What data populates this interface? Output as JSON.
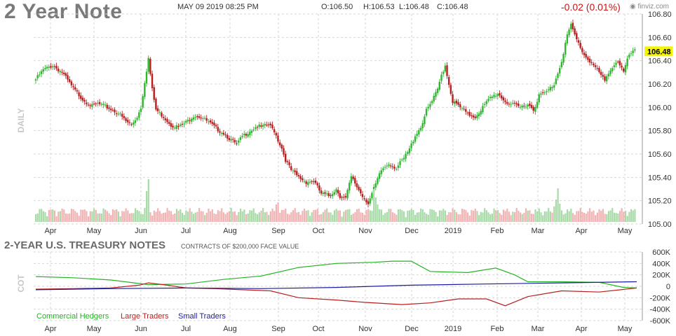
{
  "header": {
    "title": "2 Year Note",
    "date": "MAY 09 2019 08:25 PM",
    "open": "O:106.50",
    "high": "H:106.53",
    "low": "L:106.48",
    "close": "C:106.48",
    "change": "-0.02 (0.01%)",
    "brand": "finviz.com"
  },
  "colors": {
    "up": "#2fb62f",
    "down": "#b81e1e",
    "volume_up": "#a9dba9",
    "volume_down": "#f0b4b4",
    "grid": "#d6d6d6",
    "price_tag_bg": "#f5f500",
    "commercial": "#22b422",
    "large": "#b81e1e",
    "small": "#1c1ca0"
  },
  "cot": {
    "title": "2-YEAR U.S. TREASURY NOTES",
    "subtitle": "CONTRACTS OF $200,000 FACE VALUE",
    "side_label": "COT",
    "legend": {
      "commercial": "Commercial Hedgers",
      "large": "Large Traders",
      "small": "Small Traders"
    }
  },
  "chart_data": [
    {
      "type": "candlestick",
      "side_label": "DAILY",
      "last_price": "106.48",
      "y_ticks": [
        "106.80",
        "106.60",
        "106.40",
        "106.20",
        "106.00",
        "105.80",
        "105.60",
        "105.40",
        "105.20",
        "105.00"
      ],
      "ylim": [
        105.0,
        106.8
      ],
      "x_ticks": [
        "Apr",
        "May",
        "Jun",
        "Jul",
        "Aug",
        "Sep",
        "Oct",
        "Nov",
        "Dec",
        "2019",
        "Feb",
        "Mar",
        "Apr",
        "May"
      ],
      "grid": true,
      "anchors": [
        [
          0,
          106.24
        ],
        [
          4,
          106.32
        ],
        [
          9,
          106.36
        ],
        [
          14,
          106.3
        ],
        [
          20,
          106.16
        ],
        [
          25,
          106.07
        ],
        [
          30,
          106.01
        ],
        [
          33,
          106.03
        ],
        [
          38,
          106.0
        ],
        [
          44,
          105.95
        ],
        [
          48,
          105.88
        ],
        [
          51,
          105.85
        ],
        [
          54,
          105.92
        ],
        [
          56,
          106.0
        ],
        [
          58,
          106.22
        ],
        [
          60,
          106.42
        ],
        [
          62,
          106.15
        ],
        [
          64,
          105.98
        ],
        [
          68,
          105.92
        ],
        [
          72,
          105.85
        ],
        [
          76,
          105.83
        ],
        [
          80,
          105.87
        ],
        [
          84,
          105.93
        ],
        [
          88,
          105.92
        ],
        [
          92,
          105.87
        ],
        [
          96,
          105.82
        ],
        [
          100,
          105.78
        ],
        [
          104,
          105.72
        ],
        [
          107,
          105.68
        ],
        [
          110,
          105.75
        ],
        [
          114,
          105.8
        ],
        [
          118,
          105.84
        ],
        [
          120,
          105.83
        ],
        [
          124,
          105.85
        ],
        [
          127,
          105.8
        ],
        [
          129,
          105.72
        ],
        [
          131,
          105.65
        ],
        [
          133,
          105.55
        ],
        [
          136,
          105.46
        ],
        [
          140,
          105.4
        ],
        [
          144,
          105.36
        ],
        [
          148,
          105.37
        ],
        [
          152,
          105.26
        ],
        [
          156,
          105.24
        ],
        [
          160,
          105.3
        ],
        [
          162,
          105.24
        ],
        [
          165,
          105.22
        ],
        [
          168,
          105.4
        ],
        [
          171,
          105.32
        ],
        [
          174,
          105.24
        ],
        [
          177,
          105.18
        ],
        [
          180,
          105.3
        ],
        [
          184,
          105.46
        ],
        [
          188,
          105.52
        ],
        [
          192,
          105.48
        ],
        [
          196,
          105.56
        ],
        [
          199,
          105.64
        ],
        [
          202,
          105.76
        ],
        [
          205,
          105.83
        ],
        [
          208,
          105.97
        ],
        [
          211,
          106.05
        ],
        [
          214,
          106.15
        ],
        [
          216,
          106.28
        ],
        [
          218,
          106.36
        ],
        [
          220,
          106.2
        ],
        [
          222,
          106.05
        ],
        [
          226,
          106.0
        ],
        [
          230,
          105.94
        ],
        [
          234,
          105.92
        ],
        [
          238,
          106.0
        ],
        [
          242,
          106.08
        ],
        [
          246,
          106.12
        ],
        [
          250,
          106.05
        ],
        [
          254,
          106.02
        ],
        [
          258,
          106.0
        ],
        [
          262,
          106.03
        ],
        [
          265,
          105.98
        ],
        [
          268,
          106.1
        ],
        [
          272,
          106.13
        ],
        [
          276,
          106.2
        ],
        [
          280,
          106.4
        ],
        [
          283,
          106.62
        ],
        [
          285,
          106.7
        ],
        [
          288,
          106.58
        ],
        [
          292,
          106.45
        ],
        [
          296,
          106.38
        ],
        [
          300,
          106.3
        ],
        [
          303,
          106.22
        ],
        [
          306,
          106.33
        ],
        [
          310,
          106.4
        ],
        [
          313,
          106.3
        ],
        [
          316,
          106.45
        ],
        [
          319,
          106.48
        ]
      ],
      "volume_spikes": [
        [
          58,
          20
        ],
        [
          59,
          44
        ],
        [
          60,
          61
        ],
        [
          128,
          25
        ],
        [
          129,
          28
        ],
        [
          180,
          47
        ],
        [
          181,
          35
        ],
        [
          182,
          25
        ],
        [
          228,
          18
        ],
        [
          276,
          22
        ],
        [
          277,
          32
        ],
        [
          278,
          48
        ],
        [
          279,
          26
        ]
      ]
    },
    {
      "type": "line",
      "y_ticks": [
        "600K",
        "400K",
        "200K",
        "0",
        "-200K",
        "-400K",
        "-600K"
      ],
      "ylim": [
        -600,
        600
      ],
      "x_ticks": [
        "Apr",
        "May",
        "Jun",
        "Jul",
        "Aug",
        "Sep",
        "Oct",
        "Nov",
        "Dec",
        "2019",
        "Feb",
        "Mar",
        "Apr",
        "May"
      ],
      "series": [
        {
          "name": "Commercial Hedgers",
          "points": [
            [
              0,
              170
            ],
            [
              20,
              150
            ],
            [
              40,
              110
            ],
            [
              60,
              30
            ],
            [
              80,
              40
            ],
            [
              100,
              120
            ],
            [
              120,
              180
            ],
            [
              140,
              330
            ],
            [
              160,
              400
            ],
            [
              180,
              420
            ],
            [
              190,
              440
            ],
            [
              200,
              440
            ],
            [
              210,
              260
            ],
            [
              230,
              240
            ],
            [
              245,
              320
            ],
            [
              255,
              200
            ],
            [
              262,
              80
            ],
            [
              280,
              80
            ],
            [
              300,
              70
            ],
            [
              313,
              -20
            ],
            [
              320,
              -30
            ]
          ]
        },
        {
          "name": "Large Traders",
          "points": [
            [
              0,
              -50
            ],
            [
              20,
              -40
            ],
            [
              40,
              -30
            ],
            [
              55,
              20
            ],
            [
              60,
              60
            ],
            [
              70,
              20
            ],
            [
              80,
              -30
            ],
            [
              95,
              -40
            ],
            [
              110,
              -60
            ],
            [
              125,
              -80
            ],
            [
              140,
              -200
            ],
            [
              160,
              -240
            ],
            [
              175,
              -280
            ],
            [
              195,
              -320
            ],
            [
              210,
              -290
            ],
            [
              225,
              -220
            ],
            [
              240,
              -220
            ],
            [
              250,
              -340
            ],
            [
              262,
              -180
            ],
            [
              280,
              -80
            ],
            [
              300,
              -100
            ],
            [
              320,
              -30
            ]
          ]
        },
        {
          "name": "Small Traders",
          "points": [
            [
              0,
              -60
            ],
            [
              40,
              -40
            ],
            [
              80,
              -30
            ],
            [
              120,
              -40
            ],
            [
              160,
              -20
            ],
            [
              200,
              20
            ],
            [
              240,
              40
            ],
            [
              280,
              60
            ],
            [
              320,
              80
            ]
          ]
        }
      ]
    }
  ]
}
